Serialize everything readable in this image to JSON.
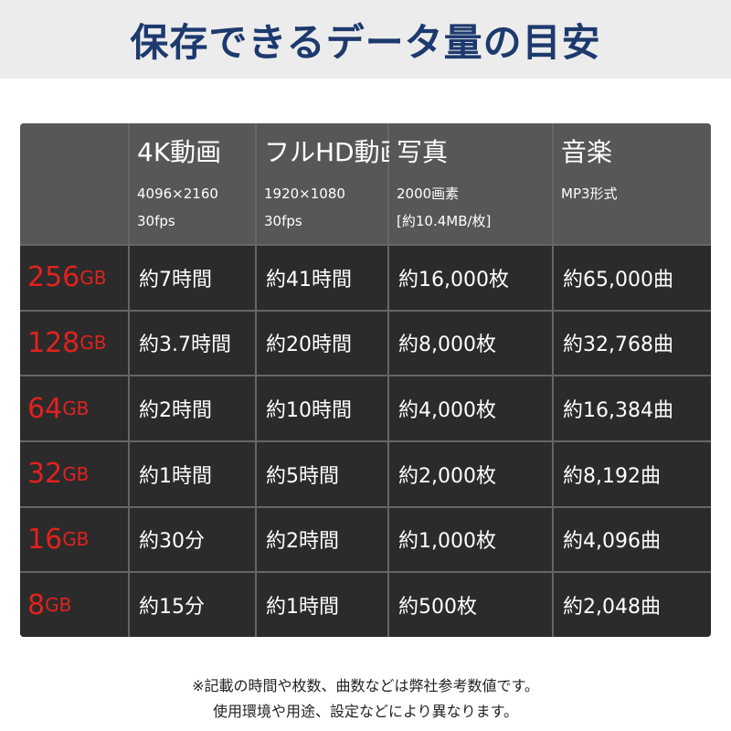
{
  "header": {
    "title": "保存できるデータ量の目安"
  },
  "table": {
    "columns": [
      {
        "name": "4K動画",
        "detail": [
          "4096×2160",
          "30fps"
        ]
      },
      {
        "name": "フルHD動画",
        "detail": [
          "1920×1080",
          "30fps"
        ]
      },
      {
        "name": "写真",
        "detail": [
          "2000画素",
          "[約10.4MB/枚]"
        ]
      },
      {
        "name": "音楽",
        "detail": [
          "MP3形式"
        ]
      }
    ],
    "rows": [
      {
        "capacity": "256",
        "unit": "GB",
        "cells": [
          "約7時間",
          "約41時間",
          "約16,000枚",
          "約65,000曲"
        ]
      },
      {
        "capacity": "128",
        "unit": "GB",
        "cells": [
          "約3.7時間",
          "約20時間",
          "約8,000枚",
          "約32,768曲"
        ]
      },
      {
        "capacity": "64",
        "unit": "GB",
        "cells": [
          "約2時間",
          "約10時間",
          "約4,000枚",
          "約16,384曲"
        ]
      },
      {
        "capacity": "32",
        "unit": "GB",
        "cells": [
          "約1時間",
          "約5時間",
          "約2,000枚",
          "約8,192曲"
        ]
      },
      {
        "capacity": "16",
        "unit": "GB",
        "cells": [
          "約30分",
          "約2時間",
          "約1,000枚",
          "約4,096曲"
        ]
      },
      {
        "capacity": "8",
        "unit": "GB",
        "cells": [
          "約15分",
          "約1時間",
          "約500枚",
          "約2,048曲"
        ]
      }
    ]
  },
  "notes": [
    "※記載の時間や枚数、曲数などは弊社参考数値です。",
    "使用環境や用途、設定などにより異なります。"
  ]
}
